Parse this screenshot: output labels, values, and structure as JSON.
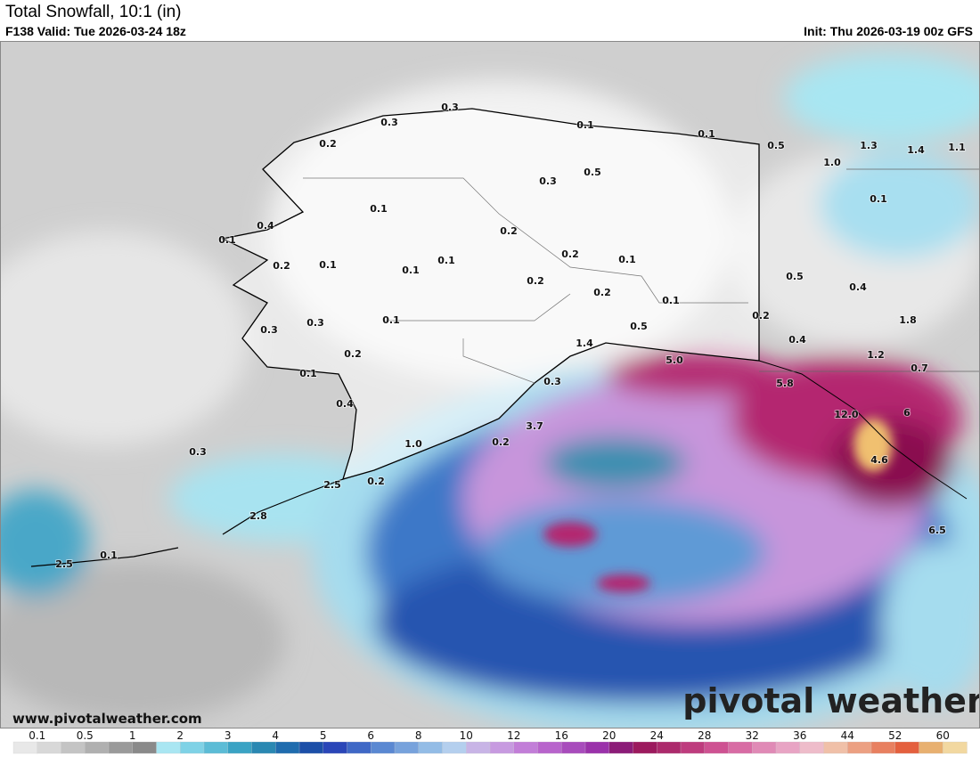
{
  "header": {
    "title": "Total Snowfall, 10:1 (in)",
    "valid": "F138 Valid: Tue 2026-03-24 18z",
    "init": "Init: Thu 2026-03-19 00z GFS"
  },
  "map_labels": [
    "0.3",
    "0.3",
    "0.2",
    "0.1",
    "0.1",
    "0.5",
    "1.3",
    "1.4",
    "1.1",
    "1.0",
    "0.5",
    "0.3",
    "0.1",
    "0.1",
    "0.4",
    "0.2",
    "0.1",
    "0.2",
    "0.1",
    "0.2",
    "0.1",
    "0.1",
    "0.1",
    "0.5",
    "0.2",
    "0.2",
    "0.4",
    "0.1",
    "0.2",
    "0.3",
    "0.1",
    "1.8",
    "0.5",
    "0.3",
    "0.4",
    "1.4",
    "0.2",
    "1.2",
    "5.0",
    "0.7",
    "0.1",
    "0.3",
    "5.8",
    "0.4",
    "12.0",
    "6",
    "3.7",
    "1.0",
    "0.3",
    "0.2",
    "0.2",
    "2.5",
    "4.6",
    "2.8",
    "6.5",
    "0.1",
    "2.5"
  ],
  "footer": {
    "logo": "pivotal weather",
    "url": "www.pivotalweather.com"
  },
  "colorbar": {
    "labels": [
      "0.1",
      "0.5",
      "1",
      "2",
      "3",
      "4",
      "5",
      "6",
      "8",
      "10",
      "12",
      "16",
      "20",
      "24",
      "28",
      "32",
      "36",
      "44",
      "52",
      "60"
    ]
  }
}
